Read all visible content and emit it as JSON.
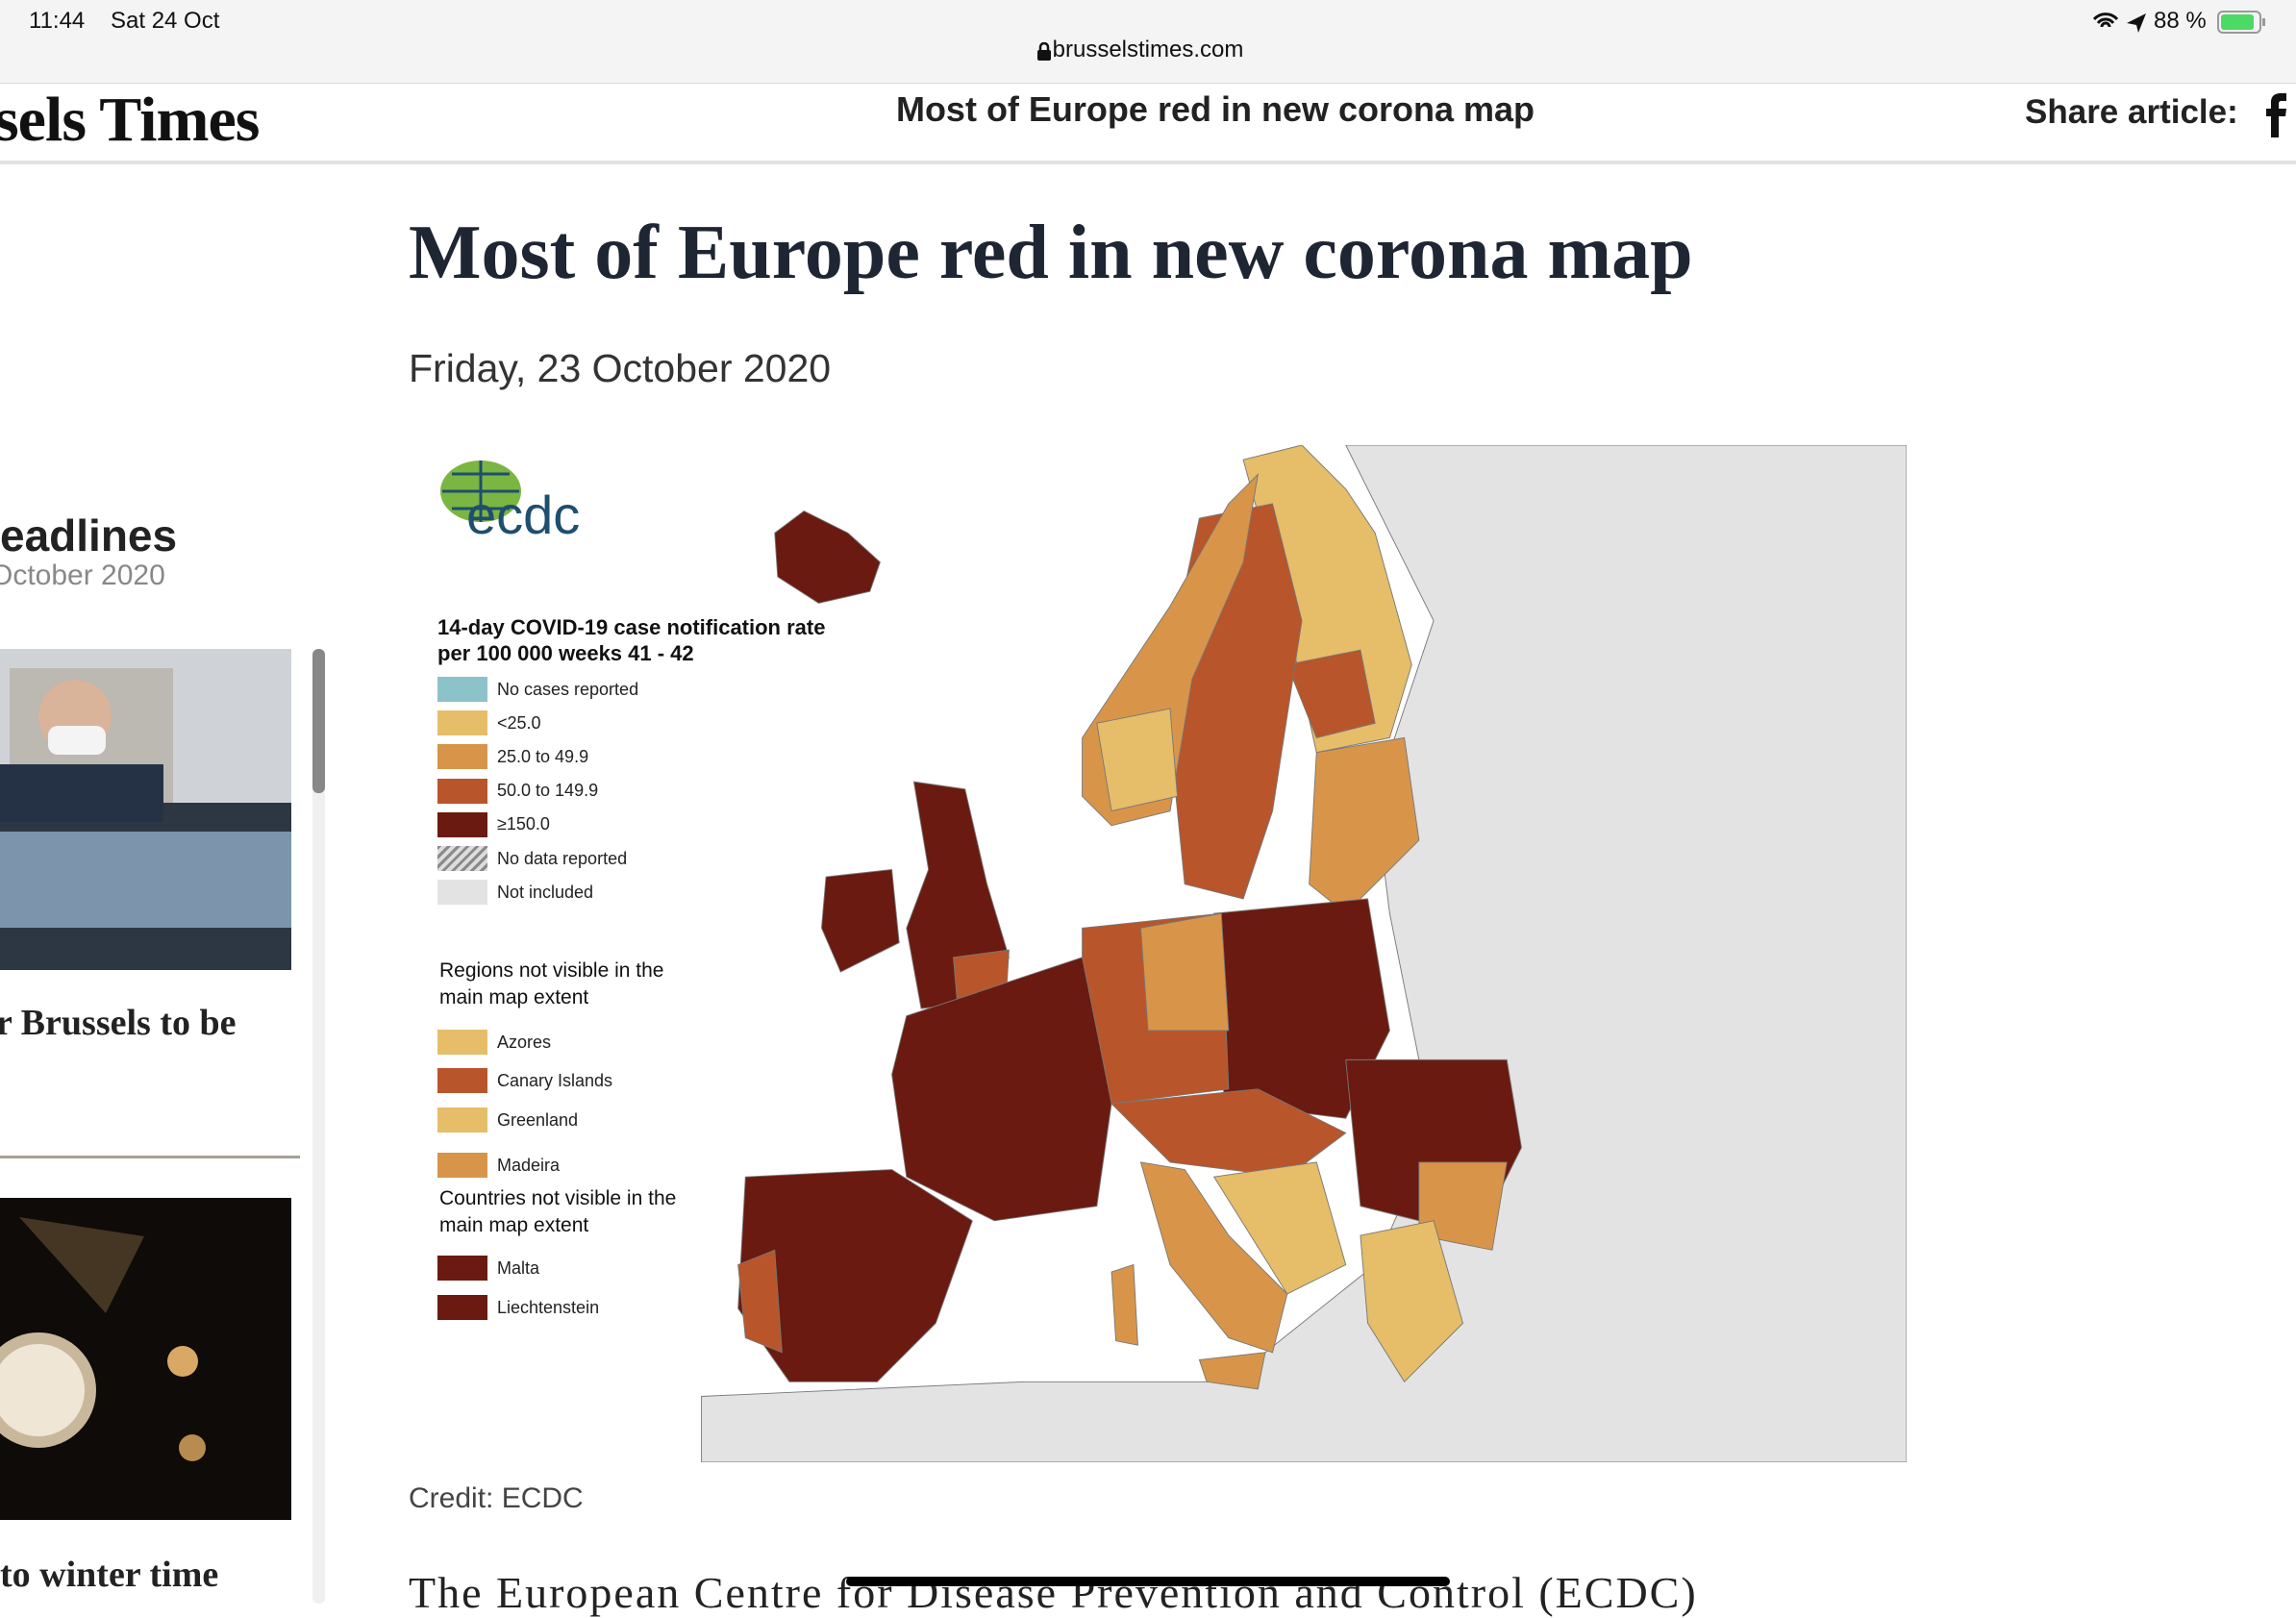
{
  "status_bar": {
    "time": "11:44",
    "date": "Sat 24 Oct",
    "url": "brusselstimes.com",
    "battery": "88 %"
  },
  "header": {
    "logo": "sels Times",
    "title": "Most of Europe red in new corona map",
    "share": "Share article:"
  },
  "sidebar": {
    "heading": "eadlines",
    "date": "October 2020",
    "stories": [
      {
        "title": "r Brussels to be"
      },
      {
        "title": "to winter time"
      }
    ]
  },
  "article": {
    "title": "Most of Europe red in new corona map",
    "date": "Friday, 23 October 2020",
    "map": {
      "logo": "ecdc",
      "legend_title": "14-day COVID-19 case notification rate per 100 000 weeks 41 - 42",
      "legend": [
        {
          "label": "No cases reported",
          "color": "#8cc2c9"
        },
        {
          "label": "<25.0",
          "color": "#e6bd68"
        },
        {
          "label": "25.0 to 49.9",
          "color": "#d8954a"
        },
        {
          "label": "50.0 to 149.9",
          "color": "#b9552a"
        },
        {
          "label": "≥150.0",
          "color": "#6a1a10"
        },
        {
          "label": "No data reported",
          "color": "#8a8a8a"
        },
        {
          "label": "Not included",
          "color": "#e3e3e3"
        }
      ],
      "regions_heading": "Regions not visible in the main map extent",
      "regions": [
        {
          "label": "Azores",
          "color": "#e6bd68"
        },
        {
          "label": "Canary Islands",
          "color": "#b9552a"
        },
        {
          "label": "Greenland",
          "color": "#e6bd68"
        },
        {
          "label": "Madeira",
          "color": "#d8954a"
        }
      ],
      "countries_heading": "Countries not visible in the main map extent",
      "countries": [
        {
          "label": "Malta",
          "color": "#6a1a10"
        },
        {
          "label": "Liechtenstein",
          "color": "#6a1a10"
        }
      ]
    },
    "credit": "Credit: ECDC",
    "body": "The European Centre for Disease Prevention and Control (ECDC)"
  }
}
